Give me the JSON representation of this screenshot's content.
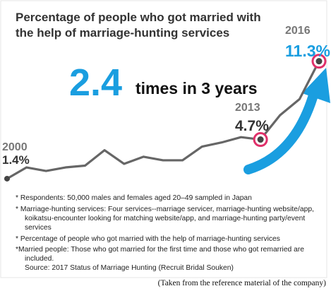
{
  "chart_data": {
    "type": "line",
    "title_lines": [
      "Percentage of people who got married with",
      "the help of marriage-hunting services"
    ],
    "categories": [
      "2000",
      null,
      null,
      null,
      null,
      null,
      null,
      null,
      null,
      null,
      null,
      null,
      null,
      "2013",
      null,
      null,
      "2016"
    ],
    "values": [
      1.4,
      2.35,
      2.05,
      2.35,
      2.5,
      3.8,
      2.65,
      3.25,
      2.95,
      2.95,
      4.1,
      4.45,
      4.9,
      4.7,
      6.75,
      8.1,
      11.3
    ],
    "value_labels": [
      "1.4%",
      null,
      null,
      null,
      null,
      null,
      null,
      null,
      null,
      null,
      null,
      null,
      null,
      "4.7%",
      null,
      null,
      "11.3%"
    ],
    "color": "#666666",
    "highlight_indices": [
      13,
      16
    ],
    "highlight_color": "#e0306a",
    "ylim": [
      0,
      12
    ],
    "annotation": {
      "big": "2.4",
      "text": "times in 3 years",
      "color": "#1a9ee0"
    },
    "notes": [
      "* Respondents: 50,000 males and females aged 20–49 sampled in Japan",
      "* Marriage-hunting services: Four services--marriage servicer, marriage-hunting website/app,",
      "koikatsu-encounter looking for matching website/app, and marriage-hunting party/event",
      "services",
      "* Percentage of people who got married with the help of marriage-hunting services",
      "*Married people: Those who got married for the first time and those who got remarried are",
      "included.",
      "Source: 2017 Status of Marriage Hunting (Recruit Bridal Souken)"
    ],
    "footer": "(Taken from the reference material of the company)"
  }
}
